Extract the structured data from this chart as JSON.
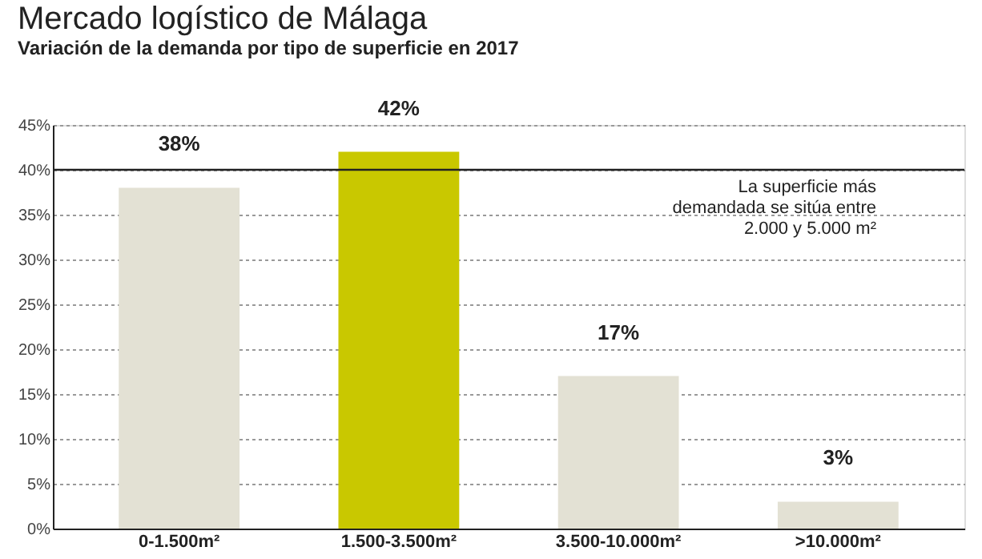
{
  "chart_data": {
    "type": "bar",
    "title": "Mercado logístico de Málaga",
    "subtitle": "Variación de la demanda por tipo de superficie en 2017",
    "categories": [
      "0-1.500m²",
      "1.500-3.500m²",
      "3.500-10.000m²",
      ">10.000m²"
    ],
    "values": [
      38,
      42,
      17,
      3
    ],
    "colors": [
      "#e3e1d4",
      "#c9c800",
      "#e3e1d4",
      "#e3e1d4"
    ],
    "value_labels": [
      "38%",
      "42%",
      "17%",
      "3%"
    ],
    "ylim": [
      0,
      45
    ],
    "yticks": [
      {
        "value": 0,
        "label": "0%"
      },
      {
        "value": 5,
        "label": "5%"
      },
      {
        "value": 10,
        "label": "10%"
      },
      {
        "value": 15,
        "label": "15%"
      },
      {
        "value": 20,
        "label": "20%"
      },
      {
        "value": 25,
        "label": "25%"
      },
      {
        "value": 30,
        "label": "30%"
      },
      {
        "value": 35,
        "label": "35%"
      },
      {
        "value": 40,
        "label": "40%"
      },
      {
        "value": 45,
        "label": "45%"
      }
    ],
    "ref_lines": [
      {
        "axis": "y",
        "value": 40,
        "label": "La superficie más\ndemandada se sitúa entre\n2.000 y 5.000 m²",
        "color": "#222222",
        "line_style": "solid"
      }
    ],
    "grid": "y"
  }
}
